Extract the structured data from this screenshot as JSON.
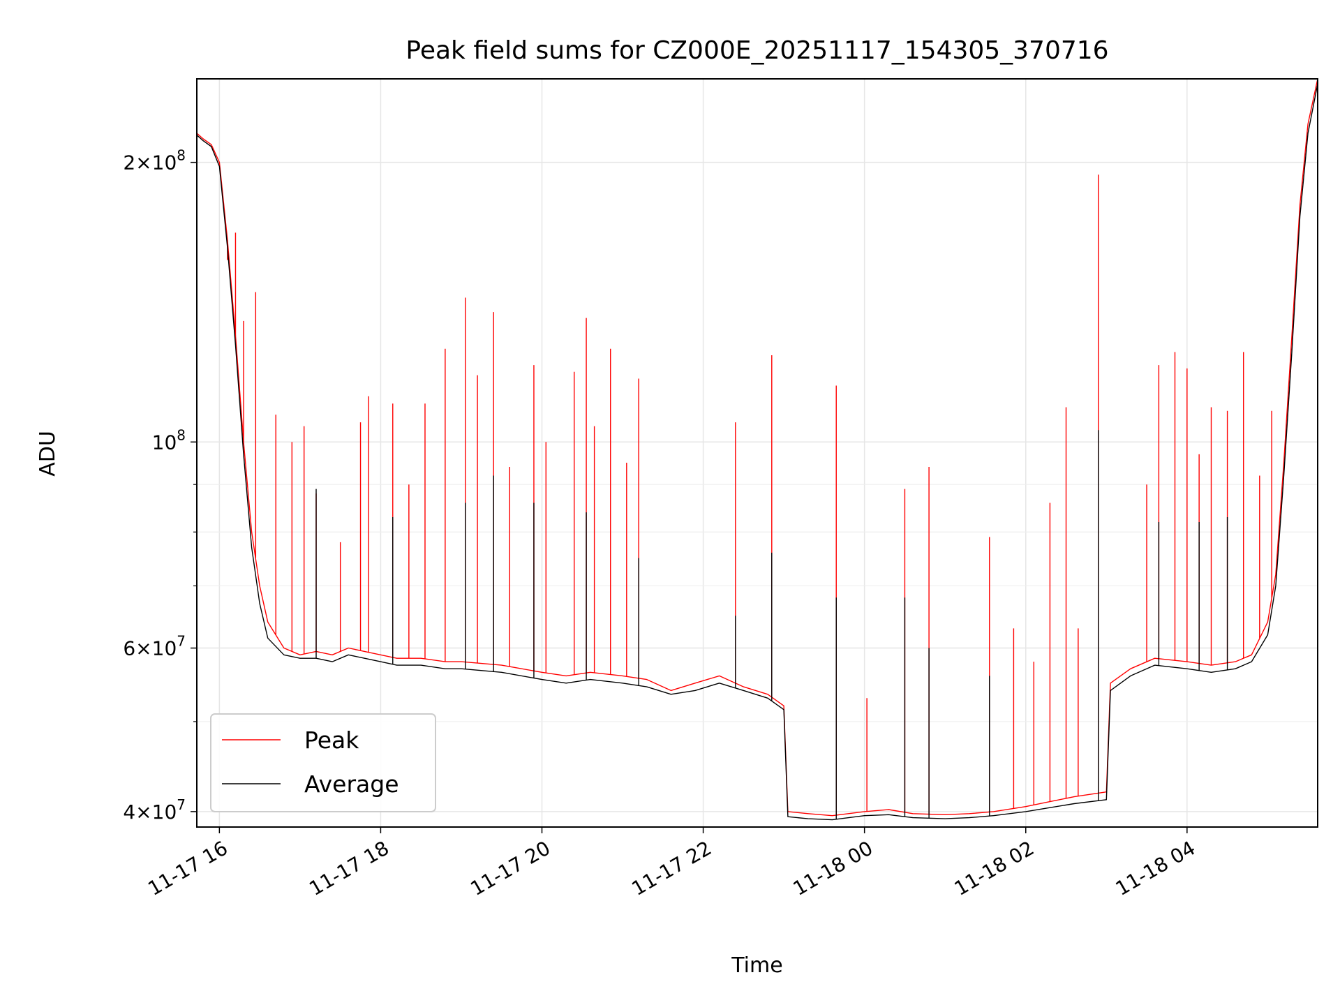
{
  "chart_data": {
    "type": "line",
    "title": "Peak field sums for CZ000E_20251117_154305_370716",
    "xlabel": "Time",
    "ylabel": "ADU",
    "x_unit": "hours from 2025-11-17 00:00",
    "xlim": [
      15.72,
      29.62
    ],
    "ylim": [
      38500000,
      246000000
    ],
    "yscale": "log",
    "grid": true,
    "legend_position": "lower-left",
    "x_ticks": [
      {
        "value": 16,
        "label": "11-17 16"
      },
      {
        "value": 18,
        "label": "11-17 18"
      },
      {
        "value": 20,
        "label": "11-17 20"
      },
      {
        "value": 22,
        "label": "11-17 22"
      },
      {
        "value": 24,
        "label": "11-18 00"
      },
      {
        "value": 26,
        "label": "11-18 02"
      },
      {
        "value": 28,
        "label": "11-18 04"
      }
    ],
    "y_major_ticks": [
      {
        "value": 40000000,
        "mant": "4",
        "exp": "7"
      },
      {
        "value": 60000000,
        "mant": "6",
        "exp": "7"
      },
      {
        "value": 100000000,
        "mant": "",
        "exp": "8"
      },
      {
        "value": 200000000,
        "mant": "2",
        "exp": "8"
      }
    ],
    "y_minor_ticks": [
      50000000,
      70000000,
      80000000,
      90000000
    ],
    "series": [
      {
        "name": "Peak",
        "color": "#ff0000",
        "x": [
          15.72,
          15.8,
          15.9,
          16.0,
          16.1,
          16.2,
          16.3,
          16.4,
          16.5,
          16.6,
          16.8,
          17.0,
          17.2,
          17.4,
          17.6,
          17.8,
          18.0,
          18.2,
          18.5,
          18.8,
          19.0,
          19.5,
          20.0,
          20.3,
          20.6,
          21.0,
          21.3,
          21.6,
          21.9,
          22.2,
          22.5,
          22.8,
          23.0,
          23.05,
          23.3,
          23.6,
          24.0,
          24.3,
          24.6,
          25.0,
          25.3,
          25.6,
          26.0,
          26.3,
          26.6,
          27.0,
          27.05,
          27.3,
          27.6,
          28.0,
          28.3,
          28.6,
          28.8,
          29.0,
          29.1,
          29.2,
          29.3,
          29.4,
          29.5,
          29.62
        ],
        "y": [
          215000000,
          212000000,
          209000000,
          200000000,
          165000000,
          130000000,
          100000000,
          80000000,
          70000000,
          64000000,
          60000000,
          59000000,
          59500000,
          59000000,
          60000000,
          59500000,
          59000000,
          58500000,
          58500000,
          58000000,
          58000000,
          57500000,
          56500000,
          56000000,
          56500000,
          56000000,
          55500000,
          54000000,
          55000000,
          56000000,
          54500000,
          53500000,
          52000000,
          40000000,
          39800000,
          39600000,
          40000000,
          40200000,
          39800000,
          39700000,
          39800000,
          40000000,
          40500000,
          41000000,
          41500000,
          42000000,
          55000000,
          57000000,
          58500000,
          58000000,
          57500000,
          58000000,
          59000000,
          64000000,
          72000000,
          95000000,
          130000000,
          180000000,
          220000000,
          246000000
        ],
        "spikes": [
          [
            16.1,
            157000000
          ],
          [
            16.2,
            168000000
          ],
          [
            16.3,
            135000000
          ],
          [
            16.45,
            145000000
          ],
          [
            16.7,
            107000000
          ],
          [
            16.9,
            100000000
          ],
          [
            17.05,
            104000000
          ],
          [
            17.2,
            88000000
          ],
          [
            17.5,
            78000000
          ],
          [
            17.75,
            105000000
          ],
          [
            17.85,
            112000000
          ],
          [
            18.15,
            110000000
          ],
          [
            18.35,
            90000000
          ],
          [
            18.55,
            110000000
          ],
          [
            18.8,
            126000000
          ],
          [
            19.05,
            143000000
          ],
          [
            19.2,
            118000000
          ],
          [
            19.4,
            138000000
          ],
          [
            19.6,
            94000000
          ],
          [
            19.9,
            121000000
          ],
          [
            20.05,
            100000000
          ],
          [
            20.4,
            119000000
          ],
          [
            20.55,
            136000000
          ],
          [
            20.65,
            104000000
          ],
          [
            20.85,
            126000000
          ],
          [
            21.05,
            95000000
          ],
          [
            21.2,
            117000000
          ],
          [
            22.4,
            105000000
          ],
          [
            22.85,
            124000000
          ],
          [
            23.65,
            115000000
          ],
          [
            24.03,
            53000000
          ],
          [
            24.5,
            89000000
          ],
          [
            24.8,
            94000000
          ],
          [
            25.55,
            79000000
          ],
          [
            25.85,
            63000000
          ],
          [
            26.1,
            58000000
          ],
          [
            26.3,
            86000000
          ],
          [
            26.5,
            109000000
          ],
          [
            26.65,
            63000000
          ],
          [
            26.9,
            194000000
          ],
          [
            27.5,
            90000000
          ],
          [
            27.65,
            121000000
          ],
          [
            27.85,
            125000000
          ],
          [
            28.0,
            120000000
          ],
          [
            28.15,
            97000000
          ],
          [
            28.3,
            109000000
          ],
          [
            28.5,
            108000000
          ],
          [
            28.7,
            125000000
          ],
          [
            28.9,
            92000000
          ],
          [
            29.05,
            108000000
          ]
        ]
      },
      {
        "name": "Average",
        "color": "#000000",
        "x": [
          15.72,
          15.8,
          15.9,
          16.0,
          16.1,
          16.2,
          16.3,
          16.4,
          16.5,
          16.6,
          16.8,
          17.0,
          17.2,
          17.4,
          17.6,
          17.8,
          18.0,
          18.2,
          18.5,
          18.8,
          19.0,
          19.5,
          20.0,
          20.3,
          20.6,
          21.0,
          21.3,
          21.6,
          21.9,
          22.2,
          22.5,
          22.8,
          23.0,
          23.05,
          23.3,
          23.6,
          24.0,
          24.3,
          24.6,
          25.0,
          25.3,
          25.6,
          26.0,
          26.3,
          26.6,
          27.0,
          27.05,
          27.3,
          27.6,
          28.0,
          28.3,
          28.6,
          28.8,
          29.0,
          29.1,
          29.2,
          29.3,
          29.4,
          29.5,
          29.62
        ],
        "y": [
          214000000,
          211000000,
          208000000,
          198000000,
          162000000,
          127000000,
          97000000,
          77000000,
          67000000,
          61500000,
          59000000,
          58500000,
          58500000,
          58000000,
          59000000,
          58500000,
          58000000,
          57500000,
          57500000,
          57000000,
          57000000,
          56500000,
          55500000,
          55000000,
          55500000,
          55000000,
          54500000,
          53500000,
          54000000,
          55000000,
          54000000,
          53000000,
          51500000,
          39500000,
          39300000,
          39200000,
          39600000,
          39700000,
          39400000,
          39300000,
          39400000,
          39600000,
          40000000,
          40400000,
          40800000,
          41200000,
          54000000,
          56000000,
          57500000,
          57000000,
          56500000,
          57000000,
          58000000,
          62000000,
          70000000,
          92000000,
          125000000,
          175000000,
          215000000,
          243000000
        ],
        "spikes": [
          [
            17.2,
            89000000
          ],
          [
            18.15,
            83000000
          ],
          [
            19.05,
            86000000
          ],
          [
            19.4,
            92000000
          ],
          [
            19.9,
            86000000
          ],
          [
            20.55,
            84000000
          ],
          [
            21.2,
            75000000
          ],
          [
            22.4,
            65000000
          ],
          [
            22.85,
            76000000
          ],
          [
            23.65,
            68000000
          ],
          [
            24.5,
            68000000
          ],
          [
            24.8,
            60000000
          ],
          [
            25.55,
            56000000
          ],
          [
            26.9,
            103000000
          ],
          [
            27.65,
            82000000
          ],
          [
            28.15,
            82000000
          ],
          [
            28.5,
            83000000
          ]
        ]
      }
    ]
  }
}
